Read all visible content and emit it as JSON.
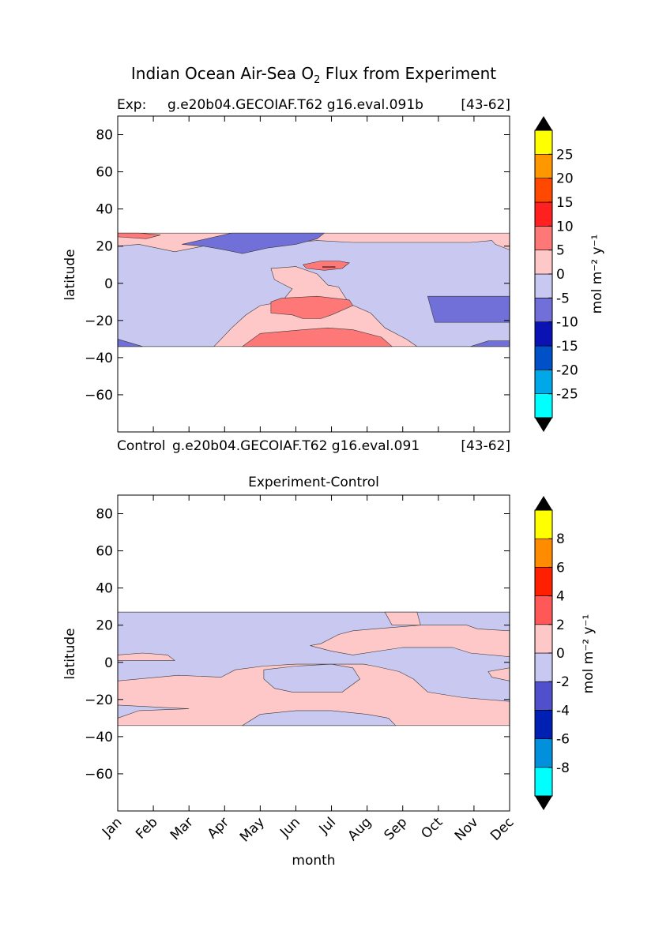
{
  "figure": {
    "title_prefix": "Indian Ocean Air-Sea O",
    "title_sub": "2",
    "title_suffix": " Flux from Experiment"
  },
  "colors": {
    "top": [
      "#00ffff",
      "#00a8e8",
      "#0050c8",
      "#0a12b4",
      "#7070d8",
      "#c8c8f0",
      "#ffc8c8",
      "#ff7878",
      "#ff2020",
      "#ff4800",
      "#ff9800",
      "#ffff00"
    ],
    "bottom": [
      "#00ffff",
      "#0090dc",
      "#0020b4",
      "#5050cc",
      "#c8c8f0",
      "#ffc8c8",
      "#ff5858",
      "#ff2000",
      "#ff8c00",
      "#ffff00"
    ],
    "arrow": "#000000"
  },
  "chart_data": [
    {
      "type": "contourf",
      "label_exp": "Exp:",
      "label_exp_case": "g.e20b04.GECOIAF.T62 g16.eval.091b",
      "label_years": "[43-62]",
      "label_control": "Control",
      "label_control_case": "g.e20b04.GECOIAF.T62 g16.eval.091",
      "label_control_years": "[43-62]",
      "xlabel": "",
      "ylabel": "latitude",
      "xlim": [
        0,
        11
      ],
      "ylim": [
        -80,
        90
      ],
      "yticks": [
        80,
        60,
        40,
        20,
        0,
        -20,
        -40,
        -60
      ],
      "data_lat_range": [
        -34,
        27
      ],
      "colorbar": {
        "label": "mol m⁻² y⁻¹",
        "levels": [
          -30,
          -25,
          -20,
          -15,
          -10,
          -5,
          0,
          5,
          10,
          15,
          20,
          25,
          30
        ],
        "ticks": [
          25,
          20,
          15,
          10,
          5,
          0,
          -5,
          -10,
          -15,
          -20,
          -25
        ],
        "extend": "both"
      },
      "regions": [
        {
          "level": "0 to 5",
          "points": [
            [
              0,
              27
            ],
            [
              11,
              27
            ],
            [
              11,
              -34
            ],
            [
              0,
              -34
            ]
          ]
        },
        {
          "level": "-5 to 0",
          "points": [
            [
              0,
              20
            ],
            [
              0.6,
              21
            ],
            [
              1.6,
              17
            ],
            [
              2.4,
              20
            ],
            [
              3.5,
              22
            ],
            [
              4.9,
              22
            ],
            [
              5.6,
              23
            ],
            [
              6.6,
              22
            ],
            [
              8.7,
              22
            ],
            [
              9.9,
              22
            ],
            [
              10.5,
              23
            ],
            [
              10.6,
              21
            ],
            [
              11,
              18
            ],
            [
              11,
              -34
            ],
            [
              8.4,
              -34
            ],
            [
              8.1,
              -30
            ],
            [
              7.5,
              -24
            ],
            [
              7.1,
              -16
            ],
            [
              6.5,
              -11
            ],
            [
              6.2,
              -2
            ],
            [
              5.9,
              -1
            ],
            [
              5.6,
              5
            ],
            [
              5,
              9
            ],
            [
              4.3,
              8
            ],
            [
              4.4,
              2
            ],
            [
              4.9,
              -3
            ],
            [
              4.6,
              -10
            ],
            [
              4.0,
              -12
            ],
            [
              3.6,
              -17
            ],
            [
              3.2,
              -24
            ],
            [
              2.9,
              -30
            ],
            [
              2.7,
              -34
            ],
            [
              0,
              -34
            ]
          ]
        },
        {
          "level": "-10 to -5",
          "points": [
            [
              1.8,
              21
            ],
            [
              3.2,
              27
            ],
            [
              5.8,
              27
            ],
            [
              5.6,
              24
            ],
            [
              5.0,
              21
            ],
            [
              4.2,
              19
            ],
            [
              3.5,
              16
            ],
            [
              3.0,
              18
            ],
            [
              2.4,
              20
            ]
          ]
        },
        {
          "level": "-10 to -5",
          "points": [
            [
              8.7,
              -7
            ],
            [
              11,
              -7
            ],
            [
              11,
              -21
            ],
            [
              8.9,
              -21
            ]
          ]
        },
        {
          "level": "-10 to -5",
          "points": [
            [
              9.9,
              -34
            ],
            [
              11,
              -34
            ],
            [
              11,
              -31
            ],
            [
              10.4,
              -31
            ]
          ]
        },
        {
          "level": "-10 to -5",
          "points": [
            [
              0,
              -34
            ],
            [
              0,
              -30
            ],
            [
              0.7,
              -34
            ]
          ]
        },
        {
          "level": "5 to 10",
          "points": [
            [
              4.3,
              -10
            ],
            [
              4.6,
              -8
            ],
            [
              5.6,
              -7
            ],
            [
              6.5,
              -9
            ],
            [
              6.6,
              -12
            ],
            [
              6.0,
              -17
            ],
            [
              5.7,
              -19
            ],
            [
              5.2,
              -19
            ],
            [
              4.9,
              -17
            ],
            [
              4.3,
              -16
            ]
          ]
        },
        {
          "level": "5 to 10",
          "points": [
            [
              3.5,
              -34
            ],
            [
              4,
              -27
            ],
            [
              5.2,
              -25
            ],
            [
              5.9,
              -24
            ],
            [
              6.6,
              -25
            ],
            [
              7.4,
              -29
            ],
            [
              7.7,
              -34
            ]
          ]
        },
        {
          "level": "5 to 10",
          "points": [
            [
              5.2,
              10
            ],
            [
              5.7,
              12
            ],
            [
              6.2,
              12
            ],
            [
              6.5,
              11
            ],
            [
              6.3,
              8
            ],
            [
              5.8,
              7
            ],
            [
              5.3,
              8
            ]
          ]
        },
        {
          "level": "5 to 10",
          "points": [
            [
              0,
              27
            ],
            [
              0.6,
              27
            ],
            [
              1.2,
              26
            ],
            [
              0.8,
              24
            ],
            [
              0,
              25
            ]
          ]
        },
        {
          "level": "10 to 15",
          "points": [
            [
              5.75,
              9
            ],
            [
              6.1,
              9
            ],
            [
              6.1,
              8.5
            ],
            [
              5.75,
              8.5
            ]
          ]
        }
      ]
    },
    {
      "type": "contourf",
      "title": "Experiment-Control",
      "xlabel": "month",
      "ylabel": "latitude",
      "xlim": [
        0,
        11
      ],
      "ylim": [
        -80,
        90
      ],
      "months": [
        "Jan",
        "Feb",
        "Mar",
        "Apr",
        "May",
        "Jun",
        "Jul",
        "Aug",
        "Sep",
        "Oct",
        "Nov",
        "Dec"
      ],
      "yticks": [
        80,
        60,
        40,
        20,
        0,
        -20,
        -40,
        -60
      ],
      "data_lat_range": [
        -34,
        27
      ],
      "colorbar": {
        "label": "mol m⁻² y⁻¹",
        "levels": [
          -10,
          -8,
          -6,
          -4,
          -2,
          0,
          2,
          4,
          6,
          8,
          10
        ],
        "ticks": [
          8,
          6,
          4,
          2,
          0,
          -2,
          -4,
          -6,
          -8
        ],
        "extend": "both"
      },
      "regions": [
        {
          "level": "0 to 2",
          "points": [
            [
              0,
              27
            ],
            [
              11,
              27
            ],
            [
              11,
              -34
            ],
            [
              0,
              -34
            ]
          ]
        },
        {
          "level": "-2 to 0",
          "points": [
            [
              0,
              27
            ],
            [
              11,
              27
            ],
            [
              11,
              17
            ],
            [
              10.1,
              18
            ],
            [
              9.8,
              20
            ],
            [
              8.5,
              20
            ],
            [
              7.2,
              18
            ],
            [
              6.6,
              17
            ],
            [
              6.2,
              15
            ],
            [
              5.7,
              10
            ],
            [
              5.4,
              9
            ],
            [
              6.0,
              6
            ],
            [
              6.6,
              4
            ],
            [
              8.0,
              8
            ],
            [
              9.4,
              8
            ],
            [
              9.9,
              5
            ],
            [
              11,
              3
            ],
            [
              11,
              -3
            ],
            [
              10.4,
              -5
            ],
            [
              10.5,
              -8
            ],
            [
              11,
              -10
            ],
            [
              11,
              -21
            ],
            [
              9.7,
              -19
            ],
            [
              8.7,
              -16
            ],
            [
              8.3,
              -9
            ],
            [
              7.9,
              -5
            ],
            [
              7.2,
              -2
            ],
            [
              6.9,
              -1
            ],
            [
              5.0,
              -1
            ],
            [
              4.1,
              -2
            ],
            [
              3.3,
              -4
            ],
            [
              2.9,
              -8
            ],
            [
              1.7,
              -7
            ],
            [
              0,
              -10
            ]
          ]
        },
        {
          "level": "0 to 2",
          "points": [
            [
              0,
              4
            ],
            [
              0.7,
              5
            ],
            [
              1.4,
              4
            ],
            [
              1.6,
              1
            ],
            [
              0,
              1
            ]
          ]
        },
        {
          "level": "0 to 2",
          "points": [
            [
              7.7,
              20
            ],
            [
              8.5,
              20
            ],
            [
              8.4,
              27
            ],
            [
              7.5,
              27
            ]
          ]
        },
        {
          "level": "-2 to 0",
          "points": [
            [
              4.1,
              -4
            ],
            [
              5.0,
              -2
            ],
            [
              6.0,
              -1
            ],
            [
              6.6,
              -3
            ],
            [
              6.8,
              -9
            ],
            [
              6.3,
              -16
            ],
            [
              4.9,
              -16
            ],
            [
              4.4,
              -14
            ],
            [
              4.1,
              -9
            ]
          ]
        },
        {
          "level": "-2 to 0",
          "points": [
            [
              3.5,
              -34
            ],
            [
              4,
              -28
            ],
            [
              5,
              -26
            ],
            [
              6,
              -26
            ],
            [
              7,
              -28
            ],
            [
              7.6,
              -30
            ],
            [
              7.8,
              -34
            ]
          ]
        },
        {
          "level": "-2 to 0",
          "points": [
            [
              0,
              -23
            ],
            [
              2,
              -25
            ],
            [
              0.6,
              -26
            ],
            [
              0,
              -30
            ]
          ]
        }
      ]
    }
  ]
}
